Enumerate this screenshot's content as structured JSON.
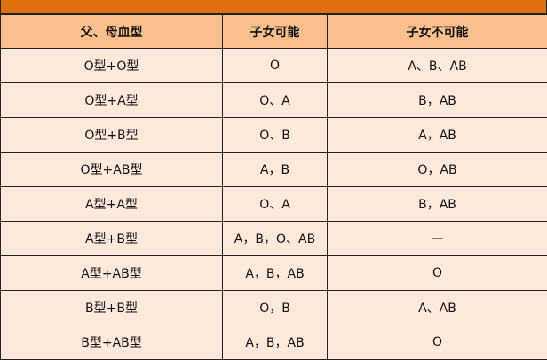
{
  "colors": {
    "title_bar": "#e06f10",
    "header_bg": "#f9bf8d",
    "row_bg": "#fde9dc"
  },
  "table": {
    "headers": [
      "父、母血型",
      "子女可能",
      "子女不可能"
    ],
    "rows": [
      [
        "O型+O型",
        "O",
        "A、B、AB"
      ],
      [
        "O型+A型",
        "O、A",
        "B，AB"
      ],
      [
        "O型+B型",
        "O、B",
        "A，AB"
      ],
      [
        "O型+AB型",
        "A，B",
        "O，AB"
      ],
      [
        "A型+A型",
        "O、A",
        "B，AB"
      ],
      [
        "A型+B型",
        "A，B，O、AB",
        "—"
      ],
      [
        "A型+AB型",
        "A，B，AB",
        "O"
      ],
      [
        "B型+B型",
        "O，B",
        "A、AB"
      ],
      [
        "B型+AB型",
        "A，B，AB",
        "O"
      ]
    ]
  }
}
